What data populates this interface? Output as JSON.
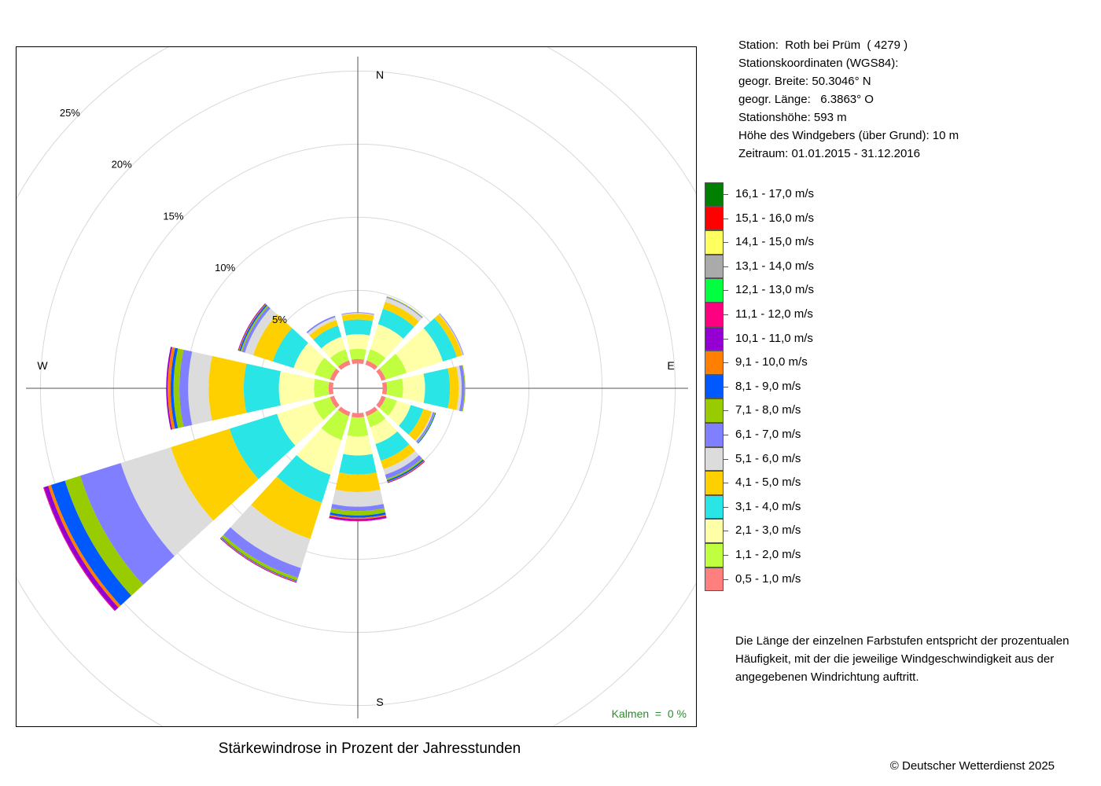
{
  "station": {
    "line1": "Station:  Roth bei Prüm  ( 4279 )",
    "line2": "Stationskoordinaten (WGS84):",
    "line3": "geogr. Breite: 50.3046° N",
    "line4": "geogr. Länge:   6.3863° O",
    "line5": "Stationshöhe: 593 m",
    "line6": "Höhe des Windgebers (über Grund): 10 m",
    "line7": "Zeitraum: 01.01.2015 - 31.12.2016"
  },
  "note": "Die Länge der einzelnen Farbstufen entspricht der prozentualen Häufigkeit, mit der die jeweilige Windgeschwindigkeit aus der angegebenen Windrichtung auftritt.",
  "caption": "Stärkewindrose in Prozent der Jahresstunden",
  "copyright": "© Deutscher Wetterdienst  2025",
  "calm": "Kalmen  =  0 %",
  "chart_data": {
    "type": "windrose",
    "title": "Stärkewindrose in Prozent der Jahresstunden",
    "unit": "%",
    "inner_radius": 1.7,
    "rings": [
      5,
      10,
      15,
      20,
      25
    ],
    "ring_labels": [
      "5%",
      "10%",
      "15%",
      "20%",
      "25%"
    ],
    "compass": {
      "N": "N",
      "E": "E",
      "S": "S",
      "W": "W"
    },
    "direction_degrees": [
      0,
      30,
      60,
      90,
      120,
      150,
      180,
      210,
      240,
      270,
      300,
      330
    ],
    "speed_classes": [
      {
        "label": "0,5 - 1,0 m/s",
        "color": "#ff7f7f"
      },
      {
        "label": "1,1 - 2,0 m/s",
        "color": "#bfff3f"
      },
      {
        "label": "2,1 - 3,0 m/s",
        "color": "#ffffa8"
      },
      {
        "label": "3,1 - 4,0 m/s",
        "color": "#2ae5e5"
      },
      {
        "label": "4,1 - 5,0 m/s",
        "color": "#ffd000"
      },
      {
        "label": "5,1 - 6,0 m/s",
        "color": "#dcdcdc"
      },
      {
        "label": "6,1 - 7,0 m/s",
        "color": "#7f7fff"
      },
      {
        "label": "7,1 - 8,0 m/s",
        "color": "#99cc00"
      },
      {
        "label": "8,1 - 9,0 m/s",
        "color": "#0059ff"
      },
      {
        "label": "9,1 - 10,0 m/s",
        "color": "#ff8000"
      },
      {
        "label": "10,1 - 11,0 m/s",
        "color": "#9400d3"
      },
      {
        "label": "11,1 - 12,0 m/s",
        "color": "#ff0080"
      },
      {
        "label": "12,1 - 13,0 m/s",
        "color": "#00ff40"
      },
      {
        "label": "13,1 - 14,0 m/s",
        "color": "#aaaaaa"
      },
      {
        "label": "14,1 - 15,0 m/s",
        "color": "#ffff60"
      },
      {
        "label": "15,1 - 16,0 m/s",
        "color": "#ff0000"
      },
      {
        "label": "16,1 - 17,0 m/s",
        "color": "#008000"
      }
    ],
    "frequencies": [
      [
        0.3,
        0.7,
        1.0,
        1.0,
        0.4,
        0.05,
        0.05,
        0,
        0,
        0,
        0,
        0,
        0,
        0,
        0,
        0,
        0
      ],
      [
        0.3,
        0.8,
        1.8,
        1.1,
        0.5,
        0.3,
        0.05,
        0.05,
        0,
        0,
        0,
        0,
        0,
        0,
        0,
        0,
        0
      ],
      [
        0.3,
        1.5,
        2.6,
        1.0,
        0.4,
        0.05,
        0.05,
        0,
        0,
        0,
        0,
        0,
        0,
        0,
        0,
        0,
        0
      ],
      [
        0.3,
        1.1,
        1.5,
        1.7,
        0.6,
        0.2,
        0.2,
        0.05,
        0,
        0,
        0,
        0,
        0,
        0,
        0,
        0,
        0
      ],
      [
        0.3,
        0.8,
        1.0,
        0.9,
        0.6,
        0.1,
        0.1,
        0.05,
        0.05,
        0,
        0,
        0,
        0,
        0,
        0,
        0,
        0
      ],
      [
        0.3,
        0.8,
        1.2,
        1.2,
        0.6,
        0.4,
        0.3,
        0.1,
        0.1,
        0.05,
        0.05,
        0,
        0,
        0,
        0,
        0,
        0
      ],
      [
        0.3,
        1.3,
        1.3,
        1.3,
        1.2,
        1.0,
        0.3,
        0.3,
        0.15,
        0.1,
        0.1,
        0.05,
        0,
        0,
        0,
        0,
        0
      ],
      [
        0.3,
        1.7,
        2.5,
        2.0,
        2.6,
        2.1,
        0.7,
        0.2,
        0.05,
        0.05,
        0.05,
        0,
        0,
        0,
        0,
        0,
        0
      ],
      [
        0.3,
        1.2,
        2.6,
        3.4,
        4.2,
        3.6,
        2.9,
        1.1,
        1.0,
        0.2,
        0.3,
        0.05,
        0,
        0,
        0,
        0,
        0
      ],
      [
        0.3,
        1.0,
        2.4,
        2.4,
        2.4,
        1.4,
        0.6,
        0.4,
        0.2,
        0.2,
        0.1,
        0,
        0,
        0,
        0,
        0,
        0
      ],
      [
        0.3,
        1.1,
        1.5,
        1.5,
        1.4,
        0.6,
        0.2,
        0.1,
        0.1,
        0.05,
        0.05,
        0,
        0,
        0,
        0,
        0,
        0
      ],
      [
        0.3,
        0.8,
        0.9,
        0.8,
        0.4,
        0.2,
        0.1,
        0,
        0,
        0,
        0,
        0,
        0,
        0,
        0,
        0,
        0
      ]
    ]
  }
}
